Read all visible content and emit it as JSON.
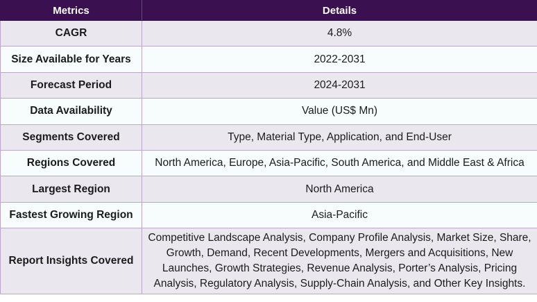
{
  "table": {
    "headers": {
      "metric": "Metrics",
      "details": "Details"
    },
    "rows": [
      {
        "metric": "CAGR",
        "details": "4.8%"
      },
      {
        "metric": "Size Available for Years",
        "details": "2022-2031"
      },
      {
        "metric": "Forecast Period",
        "details": "2024-2031"
      },
      {
        "metric": "Data Availability",
        "details": "Value (US$ Mn)"
      },
      {
        "metric": "Segments Covered",
        "details": "Type, Material Type, Application, and End-User"
      },
      {
        "metric": "Regions Covered",
        "details": "North America, Europe, Asia-Pacific, South America, and Middle East & Africa"
      },
      {
        "metric": "Largest Region",
        "details": "North America"
      },
      {
        "metric": "Fastest Growing Region",
        "details": "Asia-Pacific"
      },
      {
        "metric": "Report Insights Covered",
        "details": "Competitive Landscape Analysis, Company Profile Analysis, Market Size, Share, Growth, Demand, Recent Developments, Mergers and Acquisitions, New Launches, Growth Strategies, Revenue Analysis, Porter’s Analysis, Pricing Analysis, Regulatory Analysis, Supply-Chain Analysis, and Other Key Insights."
      }
    ]
  },
  "colors": {
    "header_background": "#3a1050",
    "header_text": "#ffffff",
    "row_shaded": "#ebe7ee",
    "row_light": "#f7fcfd",
    "border": "#b9a6c8"
  }
}
